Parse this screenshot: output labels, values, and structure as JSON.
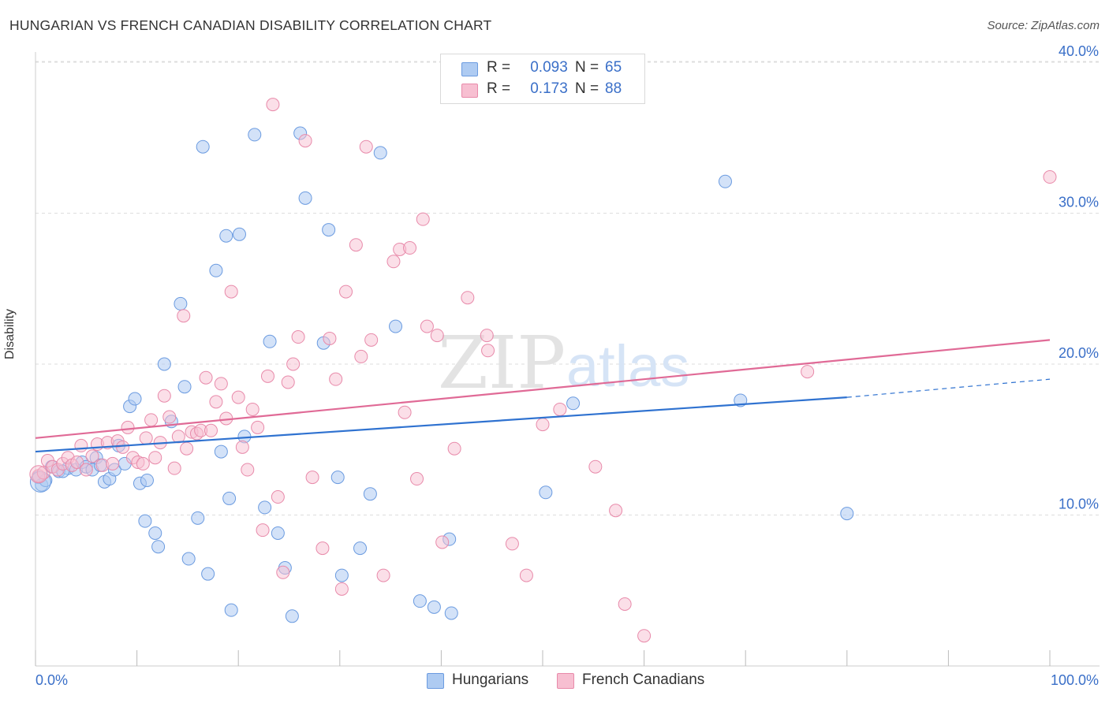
{
  "title": "HUNGARIAN VS FRENCH CANADIAN DISABILITY CORRELATION CHART",
  "source": "Source: ZipAtlas.com",
  "watermark": {
    "zip": "ZIP",
    "atlas": "atlas"
  },
  "legend": {
    "rows": [
      {
        "r_label": "R =",
        "r_value": "0.093",
        "n_label": "N =",
        "n_value": "65"
      },
      {
        "r_label": "R =",
        "r_value": "0.173",
        "n_label": "N =",
        "n_value": "88"
      }
    ]
  },
  "bottom_legend": {
    "hungarians": "Hungarians",
    "french_canadians": "French Canadians"
  },
  "chart_data": {
    "type": "scatter",
    "title": "HUNGARIAN VS FRENCH CANADIAN DISABILITY CORRELATION CHART",
    "xlabel": "",
    "ylabel": "Disability",
    "xlim": [
      0,
      100
    ],
    "ylim": [
      0,
      41
    ],
    "x_tick_labels": [
      "0.0%",
      "100.0%"
    ],
    "y_ticks": [
      10,
      20,
      30,
      40
    ],
    "y_tick_labels": [
      "10.0%",
      "20.0%",
      "30.0%",
      "40.0%"
    ],
    "grid": true,
    "legend_position": "top-center",
    "colors": {
      "hungarians_fill": "#aecbf2",
      "hungarians_stroke": "#6b9be0",
      "hungarians_line": "#2f72d0",
      "french_fill": "#f7bfd1",
      "french_stroke": "#e88aaa",
      "french_line": "#e06a96",
      "axis_text": "#3a6fc8",
      "grid": "#dddddd"
    },
    "series": [
      {
        "name": "Hungarians",
        "r": 0.093,
        "n": 65,
        "trend": {
          "x": [
            0,
            80
          ],
          "y": [
            14.2,
            17.8
          ],
          "dashed_to": [
            100,
            19.0
          ]
        },
        "points": [
          [
            0.3,
            12.5
          ],
          [
            0.6,
            12.0
          ],
          [
            1.0,
            12.3
          ],
          [
            1.6,
            13.2
          ],
          [
            2.3,
            12.9
          ],
          [
            3.2,
            13.1
          ],
          [
            4.0,
            13.0
          ],
          [
            4.6,
            13.5
          ],
          [
            5.0,
            13.2
          ],
          [
            5.6,
            13.0
          ],
          [
            6.0,
            13.8
          ],
          [
            6.4,
            13.3
          ],
          [
            6.8,
            12.2
          ],
          [
            7.3,
            12.4
          ],
          [
            7.8,
            13.0
          ],
          [
            8.2,
            14.6
          ],
          [
            8.8,
            13.4
          ],
          [
            9.3,
            17.2
          ],
          [
            9.8,
            17.7
          ],
          [
            10.3,
            12.1
          ],
          [
            11.0,
            12.3
          ],
          [
            10.8,
            9.6
          ],
          [
            11.8,
            8.8
          ],
          [
            12.1,
            7.9
          ],
          [
            12.7,
            20.0
          ],
          [
            13.4,
            16.2
          ],
          [
            14.3,
            24.0
          ],
          [
            14.7,
            18.5
          ],
          [
            15.1,
            7.1
          ],
          [
            16.0,
            9.8
          ],
          [
            16.5,
            34.4
          ],
          [
            17.0,
            6.1
          ],
          [
            17.8,
            26.2
          ],
          [
            18.3,
            14.2
          ],
          [
            18.8,
            28.5
          ],
          [
            19.3,
            3.7
          ],
          [
            19.1,
            11.1
          ],
          [
            20.1,
            28.6
          ],
          [
            20.6,
            15.2
          ],
          [
            21.6,
            35.2
          ],
          [
            22.6,
            10.5
          ],
          [
            23.1,
            21.5
          ],
          [
            23.9,
            8.8
          ],
          [
            24.6,
            6.5
          ],
          [
            25.3,
            3.3
          ],
          [
            26.1,
            35.3
          ],
          [
            26.6,
            31.0
          ],
          [
            28.4,
            21.4
          ],
          [
            28.9,
            28.9
          ],
          [
            29.8,
            12.5
          ],
          [
            30.2,
            6.0
          ],
          [
            32.0,
            7.8
          ],
          [
            33.0,
            11.4
          ],
          [
            34.0,
            34.0
          ],
          [
            35.5,
            22.5
          ],
          [
            37.9,
            4.3
          ],
          [
            39.3,
            3.9
          ],
          [
            40.8,
            8.4
          ],
          [
            41.0,
            3.5
          ],
          [
            50.3,
            11.5
          ],
          [
            53.0,
            17.4
          ],
          [
            68.0,
            32.1
          ],
          [
            69.5,
            17.6
          ],
          [
            80.0,
            10.1
          ],
          [
            2.7,
            12.9
          ]
        ]
      },
      {
        "name": "French Canadians",
        "r": 0.173,
        "n": 88,
        "trend": {
          "x": [
            0,
            100
          ],
          "y": [
            15.1,
            21.6
          ]
        },
        "points": [
          [
            0.3,
            12.6
          ],
          [
            0.8,
            12.8
          ],
          [
            1.2,
            13.6
          ],
          [
            1.7,
            13.2
          ],
          [
            2.2,
            13.0
          ],
          [
            2.7,
            13.4
          ],
          [
            3.2,
            13.8
          ],
          [
            3.6,
            13.3
          ],
          [
            4.1,
            13.5
          ],
          [
            4.5,
            14.6
          ],
          [
            5.0,
            13.0
          ],
          [
            5.6,
            13.9
          ],
          [
            6.1,
            14.7
          ],
          [
            6.6,
            13.3
          ],
          [
            7.1,
            14.8
          ],
          [
            7.6,
            13.4
          ],
          [
            8.1,
            14.9
          ],
          [
            8.6,
            14.5
          ],
          [
            9.1,
            15.8
          ],
          [
            9.6,
            13.8
          ],
          [
            10.1,
            13.5
          ],
          [
            10.6,
            13.4
          ],
          [
            10.9,
            15.1
          ],
          [
            11.4,
            16.3
          ],
          [
            11.8,
            13.8
          ],
          [
            12.3,
            14.8
          ],
          [
            12.7,
            17.9
          ],
          [
            13.2,
            16.5
          ],
          [
            13.7,
            13.1
          ],
          [
            14.1,
            15.2
          ],
          [
            14.6,
            23.2
          ],
          [
            14.9,
            14.4
          ],
          [
            15.4,
            15.5
          ],
          [
            15.9,
            15.4
          ],
          [
            16.3,
            15.6
          ],
          [
            16.8,
            19.1
          ],
          [
            17.3,
            15.6
          ],
          [
            17.8,
            17.5
          ],
          [
            18.3,
            18.7
          ],
          [
            18.8,
            16.4
          ],
          [
            19.3,
            24.8
          ],
          [
            20.0,
            17.8
          ],
          [
            20.4,
            14.5
          ],
          [
            20.9,
            13.0
          ],
          [
            21.4,
            17.0
          ],
          [
            21.9,
            15.8
          ],
          [
            22.4,
            9.0
          ],
          [
            22.9,
            19.2
          ],
          [
            23.4,
            37.2
          ],
          [
            23.9,
            11.2
          ],
          [
            24.4,
            6.2
          ],
          [
            24.9,
            18.8
          ],
          [
            25.4,
            20.0
          ],
          [
            25.9,
            21.8
          ],
          [
            26.6,
            34.8
          ],
          [
            27.3,
            12.5
          ],
          [
            28.3,
            7.8
          ],
          [
            29.0,
            21.7
          ],
          [
            29.6,
            19.0
          ],
          [
            30.2,
            5.1
          ],
          [
            30.6,
            24.8
          ],
          [
            31.6,
            27.9
          ],
          [
            32.1,
            20.5
          ],
          [
            32.6,
            34.4
          ],
          [
            33.1,
            21.6
          ],
          [
            34.3,
            6.0
          ],
          [
            35.3,
            26.8
          ],
          [
            35.9,
            27.6
          ],
          [
            36.4,
            16.8
          ],
          [
            36.9,
            27.7
          ],
          [
            37.6,
            12.4
          ],
          [
            38.2,
            29.6
          ],
          [
            38.6,
            22.5
          ],
          [
            39.6,
            21.9
          ],
          [
            40.1,
            8.2
          ],
          [
            41.3,
            14.4
          ],
          [
            42.6,
            24.4
          ],
          [
            44.5,
            21.9
          ],
          [
            44.6,
            20.9
          ],
          [
            47.0,
            8.1
          ],
          [
            48.4,
            6.0
          ],
          [
            50.0,
            16.0
          ],
          [
            51.7,
            17.0
          ],
          [
            55.2,
            13.2
          ],
          [
            57.2,
            10.3
          ],
          [
            58.1,
            4.1
          ],
          [
            60.0,
            2.0
          ],
          [
            76.1,
            19.5
          ],
          [
            100.0,
            32.4
          ]
        ]
      }
    ]
  }
}
